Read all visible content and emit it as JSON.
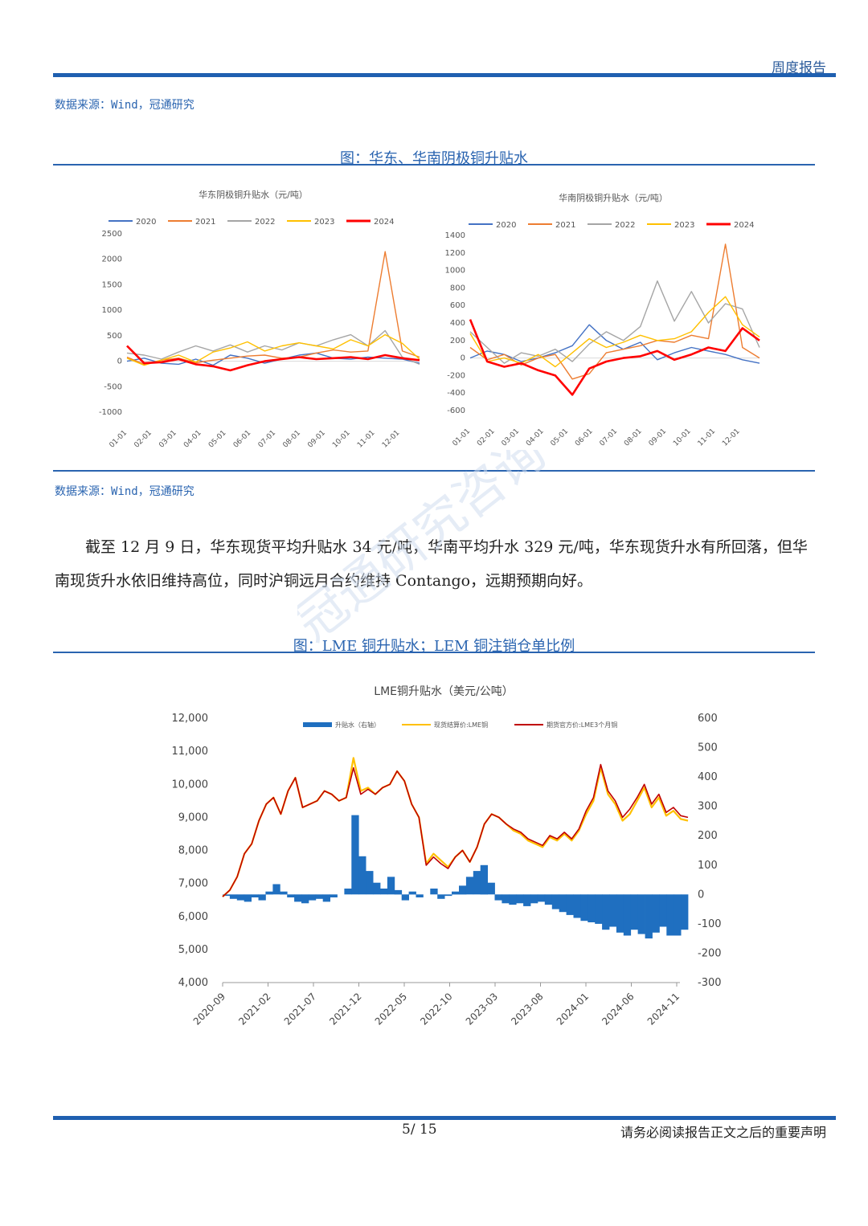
{
  "header": {
    "report_type": "周度报告"
  },
  "top_source": "数据来源：Wind，冠通研究",
  "figure1": {
    "title": "图：华东、华南阴极铜升贴水",
    "source": "数据来源：Wind，冠通研究"
  },
  "paragraph": "截至 12 月 9 日，华东现货平均升贴水 34 元/吨，华南平均升水 329 元/吨，华东现货升水有所回落，但华南现货升水依旧维持高位，同时沪铜远月合约维持 Contango，远期预期向好。",
  "figure2": {
    "title": "图：LME 铜升贴水；LEM 铜注销仓单比例"
  },
  "footer": {
    "page": "5/ 15",
    "notice": "请务必阅读报告正文之后的重要声明"
  },
  "watermark": "冠通研究咨询",
  "colors": {
    "2020": "#4472c4",
    "2021": "#ed7d31",
    "2022": "#a5a5a5",
    "2023": "#ffc000",
    "2024": "#ff0000",
    "lme_bar": "#1f6fc0",
    "lme_spot": "#ffc000",
    "lme_3m": "#c00000"
  },
  "chart_data": [
    {
      "type": "line",
      "title": "华东阴极铜升贴水（元/吨）",
      "x_ticks": [
        "01-01",
        "02-01",
        "03-01",
        "04-01",
        "05-01",
        "06-01",
        "07-01",
        "08-01",
        "09-01",
        "10-01",
        "11-01",
        "12-01"
      ],
      "ylim": [
        -1000,
        2500
      ],
      "y_ticks": [
        2500,
        2000,
        1500,
        1000,
        500,
        0,
        -500,
        -1000
      ],
      "legend_position": "top",
      "series": [
        {
          "name": "2020",
          "values": [
            0,
            60,
            -40,
            -60,
            40,
            -80,
            120,
            60,
            -40,
            40,
            120,
            160,
            60,
            40,
            80,
            60,
            40,
            -40
          ]
        },
        {
          "name": "2021",
          "values": [
            80,
            -60,
            20,
            60,
            -30,
            20,
            60,
            100,
            120,
            60,
            80,
            160,
            220,
            180,
            200,
            2150,
            200,
            80
          ]
        },
        {
          "name": "2022",
          "values": [
            160,
            120,
            40,
            180,
            300,
            200,
            320,
            180,
            300,
            220,
            360,
            300,
            420,
            520,
            300,
            600,
            80,
            -60
          ]
        },
        {
          "name": "2023",
          "values": [
            60,
            -80,
            20,
            120,
            -20,
            180,
            260,
            380,
            200,
            300,
            360,
            300,
            240,
            420,
            300,
            520,
            350,
            40
          ]
        },
        {
          "name": "2024",
          "values": [
            300,
            -40,
            -20,
            40,
            -60,
            -100,
            -180,
            -80,
            0,
            40,
            80,
            40,
            60,
            80,
            40,
            120,
            60,
            20
          ]
        }
      ]
    },
    {
      "type": "line",
      "title": "华南阴极铜升贴水（元/吨）",
      "x_ticks": [
        "01-01",
        "02-01",
        "03-01",
        "04-01",
        "05-01",
        "06-01",
        "07-01",
        "08-01",
        "09-01",
        "10-01",
        "11-01",
        "12-01"
      ],
      "ylim": [
        -600,
        1400
      ],
      "y_ticks": [
        1400,
        1200,
        1000,
        800,
        600,
        400,
        200,
        0,
        -200,
        -400,
        -600
      ],
      "legend_position": "top",
      "series": [
        {
          "name": "2020",
          "values": [
            0,
            80,
            40,
            -40,
            0,
            60,
            140,
            380,
            200,
            100,
            180,
            -20,
            60,
            120,
            80,
            40,
            -20,
            -60
          ]
        },
        {
          "name": "2021",
          "values": [
            120,
            -20,
            40,
            -80,
            0,
            40,
            -240,
            -180,
            60,
            100,
            140,
            200,
            180,
            260,
            220,
            1300,
            120,
            0
          ]
        },
        {
          "name": "2022",
          "values": [
            300,
            120,
            -60,
            60,
            20,
            100,
            -40,
            160,
            300,
            200,
            360,
            880,
            420,
            760,
            400,
            620,
            560,
            120
          ]
        },
        {
          "name": "2023",
          "values": [
            280,
            -40,
            0,
            -60,
            40,
            -100,
            60,
            220,
            120,
            180,
            260,
            200,
            220,
            300,
            520,
            700,
            380,
            240
          ]
        },
        {
          "name": "2024",
          "values": [
            440,
            -40,
            -100,
            -60,
            -140,
            -200,
            -420,
            -120,
            -40,
            0,
            20,
            80,
            -20,
            40,
            120,
            80,
            340,
            200
          ]
        }
      ]
    },
    {
      "type": "bar",
      "title": "LME铜升贴水（美元/公吨）",
      "x_ticks": [
        "2020-09",
        "2021-02",
        "2021-07",
        "2021-12",
        "2022-05",
        "2022-10",
        "2023-03",
        "2023-08",
        "2024-01",
        "2024-06",
        "2024-11"
      ],
      "ylim_left": [
        4000,
        12000
      ],
      "ylim_right": [
        -300,
        600
      ],
      "y_ticks_left": [
        "12,000",
        "11,000",
        "10,000",
        "9,000",
        "8,000",
        "7,000",
        "6,000",
        "5,000",
        "4,000"
      ],
      "y_ticks_right": [
        "600",
        "500",
        "400",
        "300",
        "200",
        "100",
        "0",
        "-100",
        "-200",
        "-300"
      ],
      "legend_position": "top",
      "series": [
        {
          "name": "升贴水（右轴）",
          "axis": "right",
          "type": "bar",
          "values": [
            -5,
            -15,
            -20,
            -25,
            -10,
            -20,
            10,
            35,
            10,
            -10,
            -25,
            -30,
            -20,
            -15,
            -25,
            -10,
            0,
            20,
            270,
            130,
            80,
            40,
            20,
            60,
            15,
            -20,
            10,
            -10,
            0,
            20,
            -15,
            -5,
            10,
            30,
            60,
            80,
            100,
            40,
            -20,
            -30,
            -35,
            -30,
            -40,
            -30,
            -25,
            -35,
            -50,
            -60,
            -70,
            -80,
            -90,
            -95,
            -100,
            -120,
            -110,
            -130,
            -140,
            -120,
            -135,
            -150,
            -130,
            -110,
            -140,
            -140,
            -120
          ]
        },
        {
          "name": "现货结算价:LME铜",
          "axis": "left",
          "type": "line",
          "values": [
            6600,
            6800,
            7200,
            7900,
            8200,
            8900,
            9400,
            9600,
            9100,
            9800,
            10200,
            9300,
            9400,
            9500,
            9800,
            9700,
            9500,
            9600,
            10800,
            9800,
            9900,
            9700,
            9900,
            10000,
            10400,
            10100,
            9400,
            9000,
            7600,
            7900,
            7700,
            7500,
            7800,
            8000,
            7650,
            8100,
            8800,
            9100,
            9000,
            8800,
            8600,
            8500,
            8300,
            8200,
            8100,
            8400,
            8300,
            8500,
            8300,
            8600,
            9100,
            9500,
            10500,
            9700,
            9400,
            8900,
            9100,
            9500,
            9900,
            9300,
            9600,
            9050,
            9200,
            8950,
            8900
          ]
        },
        {
          "name": "期货官方价:LME3个月铜",
          "axis": "left",
          "type": "line",
          "values": [
            6600,
            6800,
            7200,
            7900,
            8200,
            8900,
            9400,
            9600,
            9100,
            9800,
            10200,
            9300,
            9400,
            9500,
            9800,
            9700,
            9500,
            9600,
            10500,
            9700,
            9850,
            9700,
            9900,
            10000,
            10400,
            10100,
            9400,
            9000,
            7550,
            7800,
            7600,
            7450,
            7800,
            8000,
            7650,
            8100,
            8800,
            9100,
            9000,
            8800,
            8650,
            8550,
            8350,
            8250,
            8150,
            8450,
            8350,
            8550,
            8350,
            8650,
            9200,
            9600,
            10600,
            9800,
            9500,
            9000,
            9250,
            9600,
            10000,
            9400,
            9700,
            9150,
            9300,
            9050,
            9000
          ]
        }
      ]
    }
  ]
}
